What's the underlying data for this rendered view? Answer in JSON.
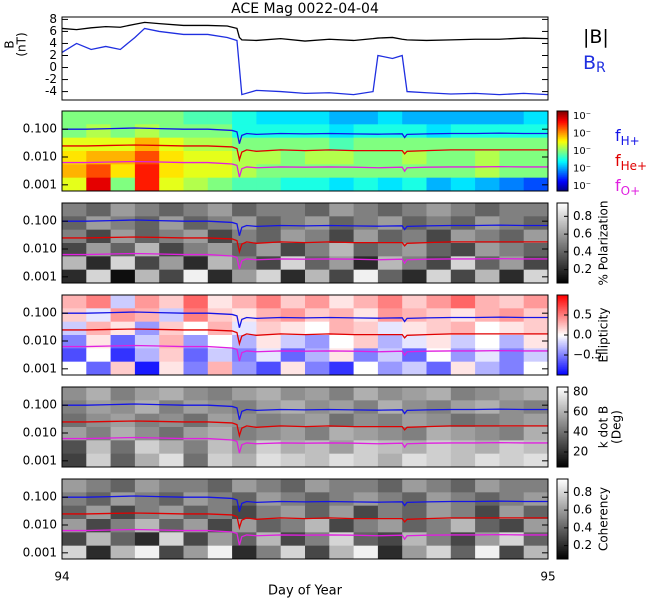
{
  "chart_data": [
    {
      "type": "line",
      "title": "ACE Mag 0022-04-04",
      "xlabel": "Day of Year",
      "xlim": [
        94,
        95
      ],
      "xticks": [
        94,
        95
      ],
      "ylabel": [
        "B",
        "(nT)"
      ],
      "ylim": [
        -5.4,
        8.4
      ],
      "yticks": [
        -4,
        -2,
        0,
        2,
        4,
        6,
        8
      ],
      "x": [
        94,
        94.03,
        94.06,
        94.09,
        94.12,
        94.15,
        94.17,
        94.2,
        94.25,
        94.3,
        94.34,
        94.36,
        94.365,
        94.37,
        94.4,
        94.45,
        94.5,
        94.55,
        94.6,
        94.64,
        94.65,
        94.68,
        94.7,
        94.71,
        94.75,
        94.8,
        94.85,
        94.9,
        94.95,
        95
      ],
      "series": [
        {
          "name": "|B|",
          "color": "#000000",
          "values": [
            6.5,
            6.3,
            6.6,
            6.8,
            6.7,
            7.2,
            7.5,
            7.3,
            7,
            7,
            6.9,
            6.5,
            5,
            4.6,
            4.5,
            4.8,
            4.4,
            4.7,
            4.5,
            4.8,
            4.9,
            5,
            4.7,
            4.6,
            4.5,
            4.6,
            4.7,
            4.7,
            4.9,
            4.8
          ]
        },
        {
          "name": "B",
          "name_sub": "R",
          "color": "#1f2fe0",
          "values": [
            2.5,
            4,
            3,
            3.5,
            3,
            5,
            6.5,
            6,
            5.5,
            5.5,
            5,
            4.5,
            0,
            -4.5,
            -3.8,
            -4,
            -4.3,
            -4.2,
            -4.5,
            -4,
            2,
            1.5,
            2,
            -4,
            -4.2,
            -4.4,
            -4.3,
            -4.5,
            -4.3,
            -4.5
          ]
        }
      ]
    },
    {
      "type": "heatmap",
      "log_y": true,
      "ylim": [
        0.0006,
        0.45
      ],
      "yticks": [
        {
          "value": 0.1,
          "label": "0.100"
        },
        {
          "value": 0.01,
          "label": "0.010"
        },
        0.001
      ],
      "colormap": "jet",
      "clim": [
        0,
        1
      ],
      "cbticklabels": [
        "10⁻",
        "10⁻",
        "10⁻",
        "10⁻",
        "10⁻"
      ],
      "x": [
        94,
        94.05,
        94.1,
        94.15,
        94.2,
        94.25,
        94.3,
        94.35,
        94.36,
        94.365,
        94.37,
        94.38,
        94.4,
        94.45,
        94.5,
        94.55,
        94.6,
        94.65,
        94.7,
        94.705,
        94.71,
        94.75,
        94.8,
        94.85,
        94.9,
        94.95,
        95
      ],
      "series": [
        {
          "name": "f",
          "name_sub": "H+",
          "color": "#1414e6",
          "values": [
            0.1,
            0.1,
            0.105,
            0.11,
            0.105,
            0.1,
            0.1,
            0.09,
            0.08,
            0.03,
            0.06,
            0.07,
            0.065,
            0.07,
            0.068,
            0.07,
            0.068,
            0.066,
            0.068,
            0.05,
            0.065,
            0.068,
            0.07,
            0.07,
            0.072,
            0.07,
            0.07
          ]
        },
        {
          "name": "f",
          "name_sub": "He+",
          "color": "#e00000",
          "values": [
            0.025,
            0.025,
            0.026,
            0.027,
            0.026,
            0.025,
            0.025,
            0.023,
            0.02,
            0.008,
            0.015,
            0.018,
            0.016,
            0.018,
            0.017,
            0.018,
            0.017,
            0.017,
            0.017,
            0.013,
            0.016,
            0.017,
            0.018,
            0.018,
            0.018,
            0.018,
            0.018
          ]
        },
        {
          "name": "f",
          "name_sub": "O+",
          "color": "#e020e0",
          "values": [
            0.0063,
            0.0063,
            0.0066,
            0.0069,
            0.0066,
            0.0063,
            0.0063,
            0.0056,
            0.005,
            0.0019,
            0.0038,
            0.0044,
            0.0041,
            0.0044,
            0.0043,
            0.0044,
            0.0043,
            0.0041,
            0.0043,
            0.0031,
            0.0041,
            0.0043,
            0.0044,
            0.0044,
            0.0045,
            0.0044,
            0.0044
          ]
        }
      ],
      "z": [
        [
          0.5,
          0.5,
          0.5,
          0.5,
          0.5,
          0.45,
          0.45,
          0.4,
          0.35,
          0.35,
          0.35,
          0.3,
          0.3,
          0.35,
          0.3,
          0.3,
          0.3,
          0.3,
          0.3,
          0.35
        ],
        [
          0.5,
          0.55,
          0.5,
          0.55,
          0.5,
          0.5,
          0.5,
          0.4,
          0.4,
          0.4,
          0.4,
          0.35,
          0.4,
          0.4,
          0.4,
          0.35,
          0.4,
          0.4,
          0.4,
          0.4
        ],
        [
          0.6,
          0.6,
          0.6,
          0.7,
          0.6,
          0.55,
          0.55,
          0.5,
          0.5,
          0.5,
          0.5,
          0.45,
          0.5,
          0.5,
          0.5,
          0.5,
          0.5,
          0.5,
          0.5,
          0.5
        ],
        [
          0.65,
          0.7,
          0.7,
          0.8,
          0.65,
          0.6,
          0.6,
          0.55,
          0.55,
          0.5,
          0.55,
          0.55,
          0.5,
          0.5,
          0.55,
          0.5,
          0.5,
          0.55,
          0.5,
          0.5
        ],
        [
          0.7,
          0.8,
          0.65,
          0.85,
          0.65,
          0.6,
          0.6,
          0.55,
          0.5,
          0.5,
          0.5,
          0.5,
          0.5,
          0.5,
          0.5,
          0.5,
          0.5,
          0.55,
          0.5,
          0.5
        ],
        [
          0.6,
          0.9,
          0.5,
          0.85,
          0.6,
          0.55,
          0.5,
          0.45,
          0.45,
          0.4,
          0.4,
          0.35,
          0.4,
          0.35,
          0.4,
          0.3,
          0.35,
          0.3,
          0.25,
          0.2
        ]
      ]
    },
    {
      "type": "heatmap",
      "log_y": true,
      "ylim": [
        0.0006,
        0.45
      ],
      "yticks": [
        {
          "value": 0.1,
          "label": "0.100"
        },
        {
          "value": 0.01,
          "label": "0.010"
        },
        0.001
      ],
      "colormap": "gray",
      "clim": [
        0.05,
        0.95
      ],
      "cbticks": [
        0.2,
        0.4,
        0.6,
        0.8
      ],
      "cblabel": [
        "% Polarization"
      ],
      "z": [
        [
          0.5,
          0.4,
          0.6,
          0.5,
          0.4,
          0.5,
          0.6,
          0.4,
          0.5,
          0.5,
          0.4,
          0.6,
          0.5,
          0.4,
          0.5,
          0.6,
          0.5,
          0.4,
          0.5,
          0.5
        ],
        [
          0.4,
          0.6,
          0.5,
          0.4,
          0.6,
          0.4,
          0.5,
          0.6,
          0.4,
          0.5,
          0.6,
          0.4,
          0.5,
          0.6,
          0.4,
          0.5,
          0.4,
          0.6,
          0.5,
          0.4
        ],
        [
          0.5,
          0.3,
          0.6,
          0.4,
          0.5,
          0.6,
          0.3,
          0.5,
          0.4,
          0.6,
          0.5,
          0.3,
          0.6,
          0.4,
          0.5,
          0.3,
          0.6,
          0.5,
          0.4,
          0.6
        ],
        [
          0.3,
          0.6,
          0.4,
          0.7,
          0.3,
          0.5,
          0.6,
          0.4,
          0.6,
          0.3,
          0.5,
          0.7,
          0.4,
          0.5,
          0.6,
          0.4,
          0.3,
          0.6,
          0.5,
          0.4
        ],
        [
          0.7,
          0.2,
          0.8,
          0.3,
          0.6,
          0.2,
          0.7,
          0.5,
          0.3,
          0.8,
          0.4,
          0.6,
          0.2,
          0.7,
          0.5,
          0.3,
          0.8,
          0.4,
          0.6,
          0.3
        ],
        [
          0.2,
          0.8,
          0.1,
          0.7,
          0.3,
          0.9,
          0.2,
          0.6,
          0.8,
          0.2,
          0.7,
          0.3,
          0.9,
          0.4,
          0.2,
          0.8,
          0.3,
          0.7,
          0.2,
          0.8
        ]
      ]
    },
    {
      "type": "heatmap",
      "log_y": true,
      "ylim": [
        0.0006,
        0.45
      ],
      "yticks": [
        {
          "value": 0.1,
          "label": "0.100"
        },
        {
          "value": 0.01,
          "label": "0.010"
        },
        0.001
      ],
      "colormap": "bwr",
      "clim": [
        -1,
        1
      ],
      "cbticks": [
        {
          "value": 0.5,
          "label": "0.5"
        },
        {
          "value": 0,
          "label": "0.0"
        },
        {
          "value": -0.5,
          "label": "−0.5"
        }
      ],
      "cblabel": [
        "Ellipticity"
      ],
      "z": [
        [
          0.3,
          0.5,
          -0.2,
          0.4,
          0.2,
          0.6,
          0.1,
          0.3,
          0.5,
          0.2,
          0.4,
          0.1,
          0.3,
          0.5,
          0.2,
          0.4,
          0.6,
          0.3,
          0.2,
          0.4
        ],
        [
          0.2,
          -0.1,
          0.4,
          0.3,
          -0.2,
          0.5,
          0.2,
          0.1,
          0.3,
          0.4,
          0.2,
          0.3,
          0.1,
          0.4,
          0.3,
          0.2,
          0.1,
          0.3,
          0.4,
          0.2
        ],
        [
          -0.2,
          0.3,
          0.1,
          -0.4,
          0.2,
          0,
          0.3,
          -0.1,
          0.2,
          0.1,
          0,
          0.3,
          0.2,
          -0.1,
          0.1,
          0.2,
          0.3,
          0,
          0.1,
          0.2
        ],
        [
          -0.5,
          0.1,
          -0.6,
          -0.2,
          0.3,
          -0.4,
          0,
          -0.3,
          0.1,
          -0.2,
          -0.4,
          0,
          0.2,
          -0.3,
          -0.1,
          0.1,
          -0.2,
          0,
          -0.3,
          0.1
        ],
        [
          -0.7,
          0,
          -0.8,
          -0.3,
          0.2,
          -0.6,
          -0.2,
          -0.5,
          -0.1,
          -0.6,
          -0.3,
          0.1,
          -0.5,
          -0.2,
          -0.6,
          0,
          -0.4,
          -0.1,
          -0.5,
          -0.2
        ],
        [
          0,
          -0.6,
          0.2,
          -0.9,
          0.1,
          -0.5,
          0.3,
          -0.4,
          -0.7,
          0.1,
          -0.5,
          -0.8,
          0,
          -0.4,
          -0.2,
          -0.6,
          0.1,
          -0.3,
          -0.5,
          0
        ]
      ]
    },
    {
      "type": "heatmap",
      "log_y": true,
      "ylim": [
        0.0006,
        0.45
      ],
      "yticks": [
        {
          "value": 0.1,
          "label": "0.100"
        },
        {
          "value": 0.01,
          "label": "0.010"
        },
        0.001
      ],
      "colormap": "gray",
      "clim": [
        5,
        85
      ],
      "cbticks": [
        20,
        40,
        60,
        80
      ],
      "cblabel": [
        "k dot B",
        "(Deg)"
      ],
      "z": [
        [
          50,
          60,
          45,
          55,
          60,
          50,
          45,
          55,
          60,
          50,
          55,
          45,
          60,
          50,
          55,
          60,
          45,
          50,
          55,
          60
        ],
        [
          45,
          55,
          50,
          60,
          45,
          55,
          50,
          45,
          55,
          60,
          50,
          55,
          45,
          60,
          50,
          45,
          55,
          60,
          50,
          45
        ],
        [
          40,
          50,
          55,
          45,
          50,
          40,
          55,
          50,
          45,
          50,
          55,
          40,
          50,
          45,
          55,
          50,
          40,
          45,
          50,
          55
        ],
        [
          55,
          45,
          60,
          50,
          40,
          55,
          60,
          45,
          50,
          55,
          45,
          60,
          55,
          50,
          45,
          60,
          55,
          50,
          45,
          60
        ],
        [
          30,
          65,
          40,
          70,
          60,
          45,
          65,
          55,
          70,
          60,
          65,
          55,
          70,
          65,
          60,
          70,
          65,
          60,
          70,
          65
        ],
        [
          25,
          70,
          35,
          60,
          75,
          40,
          70,
          60,
          75,
          70,
          65,
          75,
          70,
          60,
          75,
          70,
          65,
          75,
          70,
          75
        ]
      ]
    },
    {
      "type": "heatmap",
      "log_y": true,
      "ylim": [
        0.0006,
        0.45
      ],
      "yticks": [
        {
          "value": 0.1,
          "label": "0.100"
        },
        {
          "value": 0.01,
          "label": "0.010"
        },
        0.001
      ],
      "colormap": "gray",
      "clim": [
        0.05,
        0.95
      ],
      "cbticks": [
        0.2,
        0.4,
        0.6,
        0.8
      ],
      "cblabel": [
        "Coherency"
      ],
      "z": [
        [
          0.6,
          0.5,
          0.4,
          0.6,
          0.5,
          0.5,
          0.4,
          0.6,
          0.5,
          0.4,
          0.6,
          0.5,
          0.5,
          0.4,
          0.6,
          0.5,
          0.4,
          0.6,
          0.5,
          0.5
        ],
        [
          0.5,
          0.4,
          0.6,
          0.5,
          0.4,
          0.6,
          0.5,
          0.4,
          0.6,
          0.5,
          0.4,
          0.5,
          0.6,
          0.5,
          0.4,
          0.6,
          0.5,
          0.4,
          0.5,
          0.6
        ],
        [
          0.4,
          0.6,
          0.3,
          0.5,
          0.6,
          0.4,
          0.5,
          0.3,
          0.5,
          0.6,
          0.4,
          0.6,
          0.3,
          0.5,
          0.4,
          0.6,
          0.5,
          0.3,
          0.6,
          0.4
        ],
        [
          0.6,
          0.3,
          0.5,
          0.7,
          0.4,
          0.6,
          0.3,
          0.6,
          0.4,
          0.5,
          0.7,
          0.3,
          0.5,
          0.6,
          0.4,
          0.5,
          0.7,
          0.4,
          0.3,
          0.6
        ],
        [
          0.3,
          0.7,
          0.4,
          0.2,
          0.8,
          0.3,
          0.6,
          0.4,
          0.7,
          0.3,
          0.5,
          0.8,
          0.4,
          0.3,
          0.7,
          0.5,
          0.3,
          0.6,
          0.8,
          0.4
        ],
        [
          0.8,
          0.2,
          0.7,
          0.9,
          0.3,
          0.6,
          0.9,
          0.2,
          0.5,
          0.8,
          0.3,
          0.7,
          0.9,
          0.2,
          0.6,
          0.8,
          0.4,
          0.9,
          0.3,
          0.7
        ]
      ]
    }
  ]
}
